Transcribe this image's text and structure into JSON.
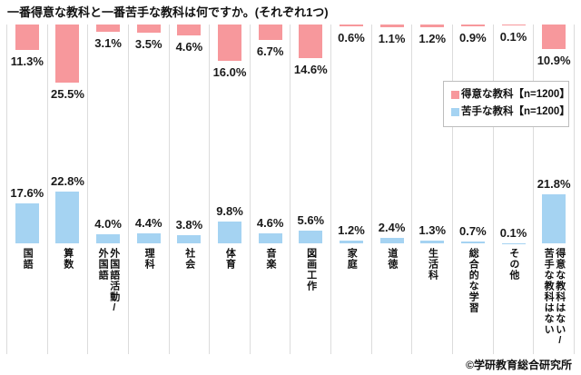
{
  "title": "一番得意な教科と一番苦手な教科は何ですか。(それぞれ1つ)",
  "legend": {
    "items": [
      {
        "label": "得意な教科【n=1200】",
        "color": "#f7989c"
      },
      {
        "label": "苦手な教科【n=1200】",
        "color": "#a5d3f2"
      }
    ]
  },
  "copyright": "©学研教育総合研究所",
  "colors": {
    "strong_subject_bar": "#f7989c",
    "weak_subject_bar": "#a5d3f2",
    "gridline": "#dcdcdc",
    "text": "#1a1a1a"
  },
  "chart_data": {
    "type": "bar",
    "title": "一番得意な教科と一番苦手な教科は何ですか。(それぞれ1つ)",
    "categories": [
      "国語",
      "算数",
      "外国語活動/外国語",
      "理科",
      "社会",
      "体育",
      "音楽",
      "図画工作",
      "家庭",
      "道徳",
      "生活科",
      "総合的な学習",
      "その他",
      "得意な教科はない/苦手な教科はない"
    ],
    "series": [
      {
        "name": "得意な教科【n=1200】",
        "color": "#f7989c",
        "orientation": "hanging-from-top",
        "values": [
          11.3,
          25.5,
          3.1,
          3.5,
          4.6,
          16.0,
          6.7,
          14.6,
          0.6,
          1.1,
          1.2,
          0.9,
          0.1,
          10.9
        ]
      },
      {
        "name": "苦手な教科【n=1200】",
        "color": "#a5d3f2",
        "orientation": "rising-to-baseline",
        "values": [
          17.6,
          22.8,
          4.0,
          4.4,
          3.8,
          9.8,
          4.6,
          5.6,
          1.2,
          2.4,
          1.3,
          0.7,
          0.1,
          21.8
        ]
      }
    ],
    "value_suffix": "%",
    "value_decimals": 1,
    "ylim": [
      0,
      25.5
    ],
    "grid": "vertical-column-separators",
    "legend_position": "middle-right",
    "xlabel": "",
    "ylabel": ""
  }
}
